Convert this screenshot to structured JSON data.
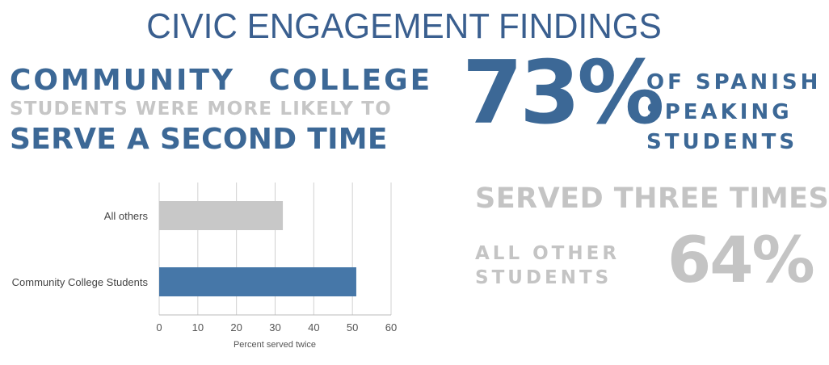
{
  "page": {
    "title": "CIVIC ENGAGEMENT FINDINGS"
  },
  "left_panel": {
    "line1": "COMMUNITY COLLEGE",
    "line2": "STUDENTS WERE MORE LIKELY TO",
    "line3": "SERVE A SECOND TIME"
  },
  "right_panel": {
    "stat1_value": "73%",
    "stat1_lines": [
      "OF SPANISH",
      "SPEAKING",
      "STUDENTS"
    ],
    "stat1_caption": "SERVED THREE TIMES",
    "stat2_lines": [
      "ALL OTHER",
      "STUDENTS"
    ],
    "stat2_value": "64%"
  },
  "colors": {
    "accent_blue": "#3c6896",
    "bar_blue": "#4677a8",
    "bar_gray": "#c8c8c8",
    "light_gray_text": "#c4c4c4",
    "grid": "#d0d0d0"
  },
  "chart_data": {
    "type": "bar",
    "orientation": "horizontal",
    "categories": [
      "All others",
      "Community College Students"
    ],
    "values": [
      32,
      51
    ],
    "bar_colors": [
      "#c8c8c8",
      "#4677a8"
    ],
    "xlabel": "Percent served twice",
    "ylabel": "",
    "xlim": [
      0,
      60
    ],
    "xticks": [
      0,
      10,
      20,
      30,
      40,
      50,
      60
    ],
    "grid": true
  }
}
